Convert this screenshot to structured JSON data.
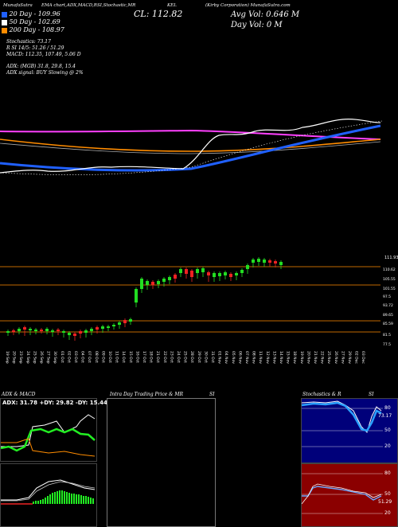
{
  "header": {
    "tab1": "MunafaSutra",
    "tab2": "EMA chart,ADX,MACD,R",
    "tab3": "SI,Stochastic,MR",
    "tab4": "KEL",
    "company": "(Kirby Corporation) MunafaSutra.com"
  },
  "close_label": "CL: 112.82",
  "avg_vol": "Avg Vol: 0.646  M",
  "day_vol": "Day Vol: 0   M",
  "ema_legend": [
    {
      "label": "20  Day - 109.96",
      "color": "#2060ff"
    },
    {
      "label": "50  Day - 102.69",
      "color": "#ffffff"
    },
    {
      "label": "200  Day - 108.97",
      "color": "#ff8c00"
    }
  ],
  "indicators": {
    "stoch_label": "Stochastics: 73.17",
    "rsi_line1": "R          SI 14/5: 51.26  / 51.29",
    "macd_line": "MACD: 112.35, 107.49, 5.06  D",
    "adx_line": "ADX:                     (MGB) 31.8,  29.8,  15.4",
    "adx_signal": "ADX  signal:                     BUY Slowing @ 2%"
  },
  "price_axis": [
    "110.62",
    "105.55",
    "101.55",
    "97.5",
    "93.72",
    "89.65",
    "85.59",
    "81.5",
    "77.5"
  ],
  "price_top_label": "111.93",
  "dates": [
    "19 Sep",
    "20 Sep",
    "23 Sep",
    "24 Sep",
    "25 Sep",
    "26 Sep",
    "27 Sep",
    "30 Sep",
    "01 Oct",
    "02 Oct",
    "03 Oct",
    "04 Oct",
    "07 Oct",
    "08 Oct",
    "09 Oct",
    "10 Oct",
    "11 Oct",
    "14 Oct",
    "15 Oct",
    "16 Oct",
    "17 Oct",
    "18 Oct",
    "21 Oct",
    "22 Oct",
    "23 Oct",
    "24 Oct",
    "25 Oct",
    "28 Oct",
    "29 Oct",
    "30 Oct",
    "31 Oct",
    "01 Nov",
    "04 Nov",
    "05 Nov",
    "06 Nov",
    "07 Nov",
    "08 Nov",
    "11 Nov",
    "12 Nov",
    "13 Nov",
    "14 Nov",
    "15 Nov",
    "18 Nov",
    "19 Nov",
    "20 Nov",
    "21 Nov",
    "22 Nov",
    "25 Nov",
    "26 Nov",
    "27 Nov",
    "29 Nov",
    "02 Dec",
    "03 Dec"
  ],
  "bottom": {
    "adx_title": "ADX  & MACD",
    "adx_values": "ADX: 31.78  +DY: 29.82  -DY: 15.44",
    "intraday_title": "Intra  Day Trading Price  & MR",
    "intraday_si": "SI",
    "stoch_title": "Stochastics & R",
    "stoch_si": "SI",
    "stoch_axis": [
      "80",
      "50",
      "20"
    ],
    "stoch_val": "73.17",
    "rsi_axis": [
      "80",
      "50",
      "20"
    ],
    "rsi_val": "51.29"
  },
  "colors": {
    "up": "#22dd22",
    "down": "#ee2222",
    "ema20": "#2060ff",
    "ema200": "#ff8c00",
    "ema50": "#ffffff",
    "magenta": "#ff40ff"
  }
}
